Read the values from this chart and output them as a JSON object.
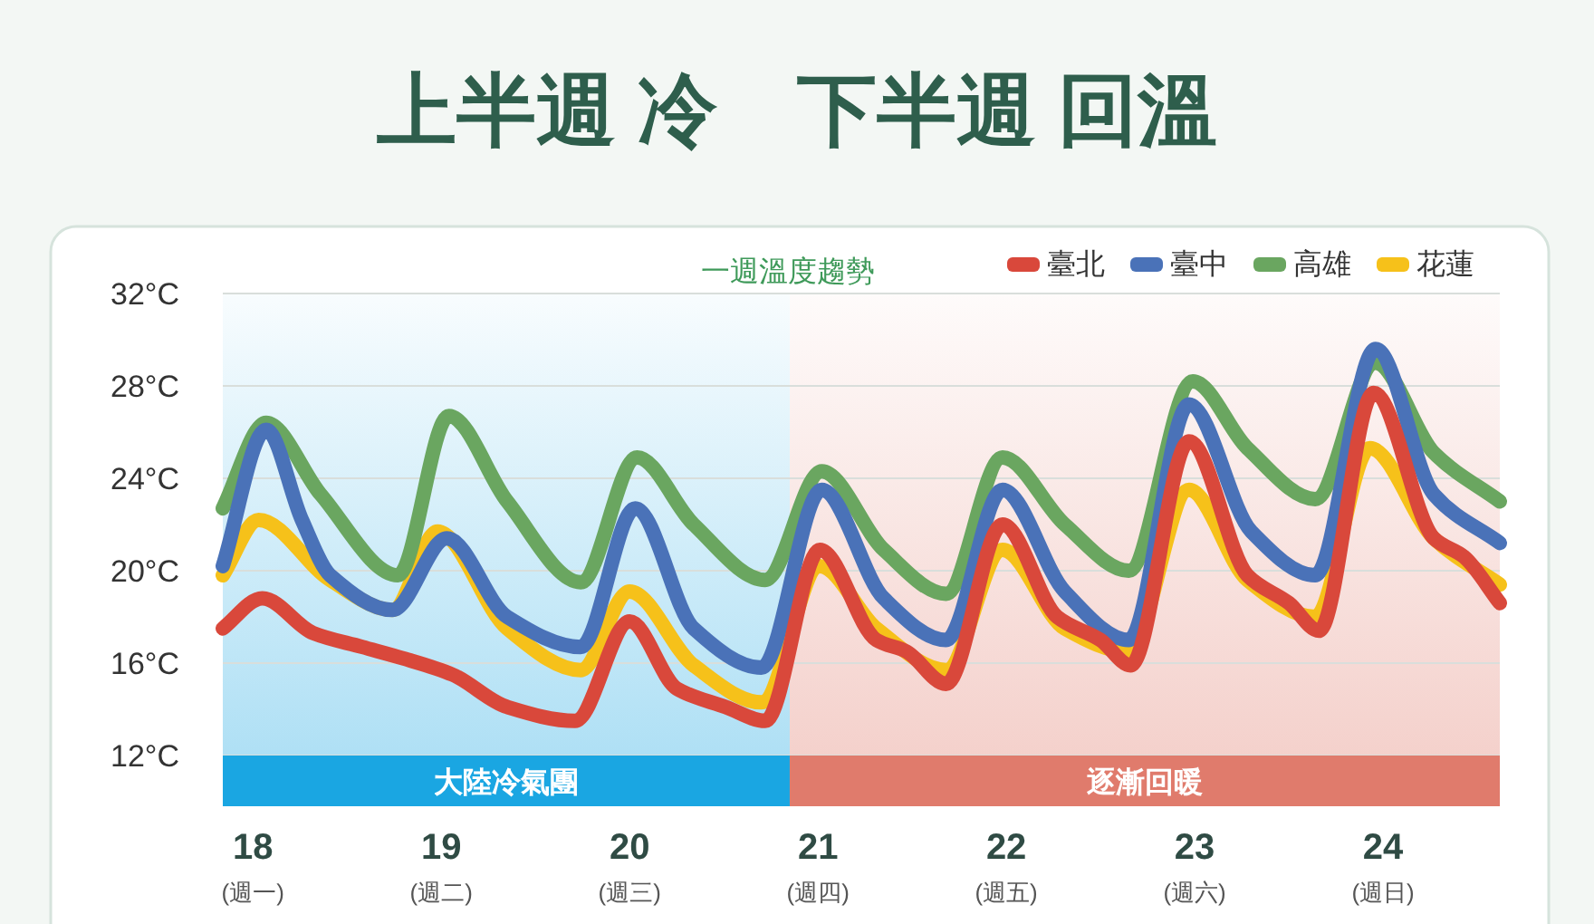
{
  "chart_data": {
    "type": "line",
    "title": "上半週 冷　下半週 回溫",
    "subtitle": "一週溫度趨勢",
    "xlim": [
      17.84,
      24.62
    ],
    "xticks": [
      {
        "value": 18,
        "label": "18 (週一)"
      },
      {
        "value": 19,
        "label": "19 (週二)"
      },
      {
        "value": 20,
        "label": "20 (週三)"
      },
      {
        "value": 21,
        "label": "21 (週四)"
      },
      {
        "value": 22,
        "label": "22 (週五)"
      },
      {
        "value": 23,
        "label": "23 (週六)"
      },
      {
        "value": 24,
        "label": "24 (週日)"
      }
    ],
    "ylim": [
      12,
      32
    ],
    "yticks": [
      {
        "value": 12,
        "label": "12°C"
      },
      {
        "value": 16,
        "label": "16°C"
      },
      {
        "value": 20,
        "label": "20°C"
      },
      {
        "value": 24,
        "label": "24°C"
      },
      {
        "value": 28,
        "label": "28°C"
      },
      {
        "value": 32,
        "label": "32°C"
      }
    ],
    "grid": "y",
    "legend": "top right",
    "line_style": "solid",
    "marker": "none",
    "bands": [
      {
        "axis": "x",
        "from": 17.84,
        "to": 20.85,
        "label": "大陸冷氣團",
        "color": "#1aa6e2"
      },
      {
        "axis": "x",
        "from": 20.85,
        "to": 24.62,
        "label": "逐漸回暖",
        "color": "#e07b6c"
      }
    ],
    "series": [
      {
        "name": "臺北",
        "color": "#d9483b",
        "x": [
          17.84,
          18.05,
          18.32,
          18.58,
          18.8,
          19.06,
          19.35,
          19.71,
          20.0,
          20.25,
          20.51,
          20.72,
          21.01,
          21.31,
          21.47,
          21.68,
          21.98,
          22.27,
          22.5,
          22.66,
          22.97,
          23.28,
          23.5,
          23.66,
          23.95,
          24.27,
          24.43,
          24.62
        ],
        "values": [
          17.5,
          18.8,
          17.3,
          16.7,
          16.2,
          15.5,
          14.1,
          13.5,
          17.8,
          14.9,
          14.1,
          13.5,
          20.9,
          17.0,
          16.5,
          15.1,
          22.0,
          18.0,
          17.0,
          15.9,
          25.6,
          19.8,
          18.6,
          17.4,
          27.7,
          21.4,
          20.6,
          18.6
        ]
      },
      {
        "name": "臺中",
        "color": "#4a72b8",
        "x": [
          17.84,
          18.07,
          18.26,
          18.41,
          18.74,
          19.03,
          19.35,
          19.74,
          20.03,
          20.34,
          20.7,
          21.02,
          21.35,
          21.68,
          21.98,
          22.31,
          22.65,
          22.97,
          23.3,
          23.64,
          23.96,
          24.27,
          24.62
        ],
        "values": [
          20.2,
          26.1,
          22.2,
          19.8,
          18.3,
          21.4,
          18.0,
          16.7,
          22.7,
          17.5,
          15.8,
          23.5,
          18.8,
          17.0,
          23.5,
          19.1,
          17.0,
          27.2,
          21.7,
          19.8,
          29.6,
          23.3,
          21.2
        ]
      },
      {
        "name": "高雄",
        "color": "#6aa660",
        "x": [
          17.84,
          18.07,
          18.36,
          18.77,
          19.04,
          19.35,
          19.74,
          20.04,
          20.34,
          20.72,
          21.02,
          21.35,
          21.68,
          21.98,
          22.31,
          22.65,
          22.99,
          23.28,
          23.64,
          23.96,
          24.27,
          24.62
        ],
        "values": [
          22.7,
          26.4,
          23.3,
          19.8,
          26.7,
          23.0,
          19.5,
          24.9,
          22.0,
          19.6,
          24.3,
          20.9,
          19.0,
          24.9,
          22.0,
          20.0,
          28.2,
          25.3,
          23.1,
          29.0,
          25.1,
          23.0
        ]
      },
      {
        "name": "花蓮",
        "color": "#f6c11a",
        "x": [
          17.84,
          18.03,
          18.41,
          18.74,
          18.98,
          19.35,
          19.74,
          20.0,
          20.34,
          20.7,
          21.01,
          21.31,
          21.68,
          21.98,
          22.31,
          22.65,
          22.97,
          23.28,
          23.64,
          23.93,
          24.27,
          24.62
        ],
        "values": [
          19.8,
          22.2,
          19.6,
          18.3,
          21.7,
          17.5,
          15.7,
          19.1,
          15.9,
          14.3,
          20.2,
          17.5,
          15.7,
          20.9,
          17.5,
          16.5,
          23.5,
          19.6,
          18.0,
          25.3,
          21.4,
          19.4
        ]
      }
    ]
  }
}
